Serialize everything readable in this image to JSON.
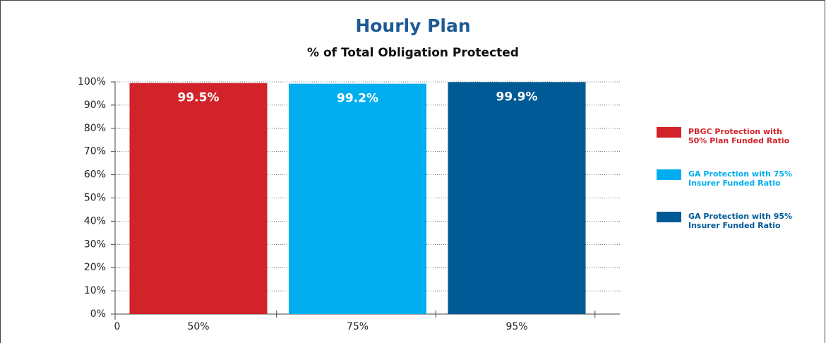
{
  "chart_data": {
    "type": "bar",
    "title": "Hourly Plan",
    "subtitle": "% of Total Obligation Protected",
    "categories": [
      "50%",
      "75%",
      "95%"
    ],
    "values": [
      99.5,
      99.2,
      99.9
    ],
    "value_labels": [
      "99.5%",
      "99.2%",
      "99.9%"
    ],
    "colors": [
      "#d2232a",
      "#00aeef",
      "#005a96"
    ],
    "legend": [
      "PBGC Protection with 50% Plan Funded Ratio",
      "GA Protection with 75% Insurer Funded Ratio",
      "GA Protection with 95% Insurer Funded Ratio"
    ],
    "x_origin_label": "0",
    "ylim": [
      0,
      100
    ],
    "yticks": [
      {
        "value": 0,
        "label": "0%"
      },
      {
        "value": 10,
        "label": "10%"
      },
      {
        "value": 20,
        "label": "20%"
      },
      {
        "value": 30,
        "label": "30%"
      },
      {
        "value": 40,
        "label": "40%"
      },
      {
        "value": 50,
        "label": "50%"
      },
      {
        "value": 60,
        "label": "60%"
      },
      {
        "value": 70,
        "label": "70%"
      },
      {
        "value": 80,
        "label": "80%"
      },
      {
        "value": 90,
        "label": "90%"
      },
      {
        "value": 100,
        "label": "100%"
      }
    ],
    "grid": true,
    "legend_position": "right"
  }
}
